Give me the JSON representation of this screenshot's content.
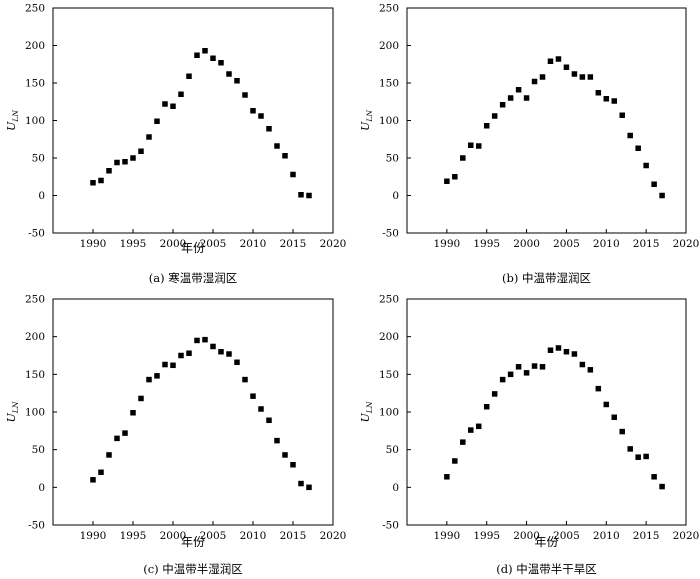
{
  "chart_data": [
    {
      "type": "scatter",
      "caption": "(a) 寒温带湿润区",
      "xlabel": "年份",
      "ylabel_main": "U",
      "ylabel_sub": "LN",
      "xlim": [
        1985,
        2020
      ],
      "ylim": [
        -50,
        250
      ],
      "xticks": [
        1990,
        1995,
        2000,
        2005,
        2010,
        2015,
        2020
      ],
      "yticks": [
        -50,
        0,
        50,
        100,
        150,
        200,
        250
      ],
      "x": [
        1990,
        1991,
        1992,
        1993,
        1994,
        1995,
        1996,
        1997,
        1998,
        1999,
        2000,
        2001,
        2002,
        2003,
        2004,
        2005,
        2006,
        2007,
        2008,
        2009,
        2010,
        2011,
        2012,
        2013,
        2014,
        2015,
        2016,
        2017
      ],
      "y": [
        17,
        20,
        33,
        44,
        45,
        50,
        59,
        78,
        99,
        122,
        119,
        135,
        159,
        187,
        193,
        183,
        177,
        162,
        153,
        134,
        113,
        106,
        89,
        66,
        53,
        28,
        1,
        0
      ]
    },
    {
      "type": "scatter",
      "caption": "(b) 中温带湿润区",
      "xlabel": "",
      "ylabel_main": "U",
      "ylabel_sub": "LN",
      "xlim": [
        1985,
        2020
      ],
      "ylim": [
        -50,
        250
      ],
      "xticks": [
        1990,
        1995,
        2000,
        2005,
        2010,
        2015,
        2020
      ],
      "yticks": [
        -50,
        0,
        50,
        100,
        150,
        200,
        250
      ],
      "x": [
        1990,
        1991,
        1992,
        1993,
        1994,
        1995,
        1996,
        1997,
        1998,
        1999,
        2000,
        2001,
        2002,
        2003,
        2004,
        2005,
        2006,
        2007,
        2008,
        2009,
        2010,
        2011,
        2012,
        2013,
        2014,
        2015,
        2016,
        2017
      ],
      "y": [
        19,
        25,
        50,
        67,
        66,
        93,
        106,
        121,
        130,
        141,
        130,
        152,
        158,
        179,
        182,
        171,
        162,
        158,
        158,
        137,
        129,
        126,
        107,
        80,
        63,
        40,
        15,
        0
      ]
    },
    {
      "type": "scatter",
      "caption": "(c) 中温带半湿润区",
      "xlabel": "年份",
      "ylabel_main": "U",
      "ylabel_sub": "LN",
      "xlim": [
        1985,
        2020
      ],
      "ylim": [
        -50,
        250
      ],
      "xticks": [
        1990,
        1995,
        2000,
        2005,
        2010,
        2015,
        2020
      ],
      "yticks": [
        -50,
        0,
        50,
        100,
        150,
        200,
        250
      ],
      "x": [
        1990,
        1991,
        1992,
        1993,
        1994,
        1995,
        1996,
        1997,
        1998,
        1999,
        2000,
        2001,
        2002,
        2003,
        2004,
        2005,
        2006,
        2007,
        2008,
        2009,
        2010,
        2011,
        2012,
        2013,
        2014,
        2015,
        2016,
        2017
      ],
      "y": [
        10,
        20,
        43,
        65,
        72,
        99,
        118,
        143,
        148,
        163,
        162,
        175,
        178,
        195,
        196,
        187,
        180,
        177,
        166,
        143,
        121,
        104,
        89,
        62,
        43,
        30,
        5,
        0
      ]
    },
    {
      "type": "scatter",
      "caption": "(d) 中温带半干旱区",
      "xlabel": "年份",
      "ylabel_main": "U",
      "ylabel_sub": "LN",
      "xlim": [
        1985,
        2020
      ],
      "ylim": [
        -50,
        250
      ],
      "xticks": [
        1990,
        1995,
        2000,
        2005,
        2010,
        2015,
        2020
      ],
      "yticks": [
        -50,
        0,
        50,
        100,
        150,
        200,
        250
      ],
      "x": [
        1990,
        1991,
        1992,
        1993,
        1994,
        1995,
        1996,
        1997,
        1998,
        1999,
        2000,
        2001,
        2002,
        2003,
        2004,
        2005,
        2006,
        2007,
        2008,
        2009,
        2010,
        2011,
        2012,
        2013,
        2014,
        2015,
        2016,
        2017
      ],
      "y": [
        14,
        35,
        60,
        76,
        81,
        107,
        124,
        143,
        150,
        160,
        152,
        161,
        160,
        182,
        185,
        180,
        177,
        163,
        156,
        131,
        110,
        93,
        74,
        51,
        40,
        41,
        14,
        1
      ]
    }
  ]
}
